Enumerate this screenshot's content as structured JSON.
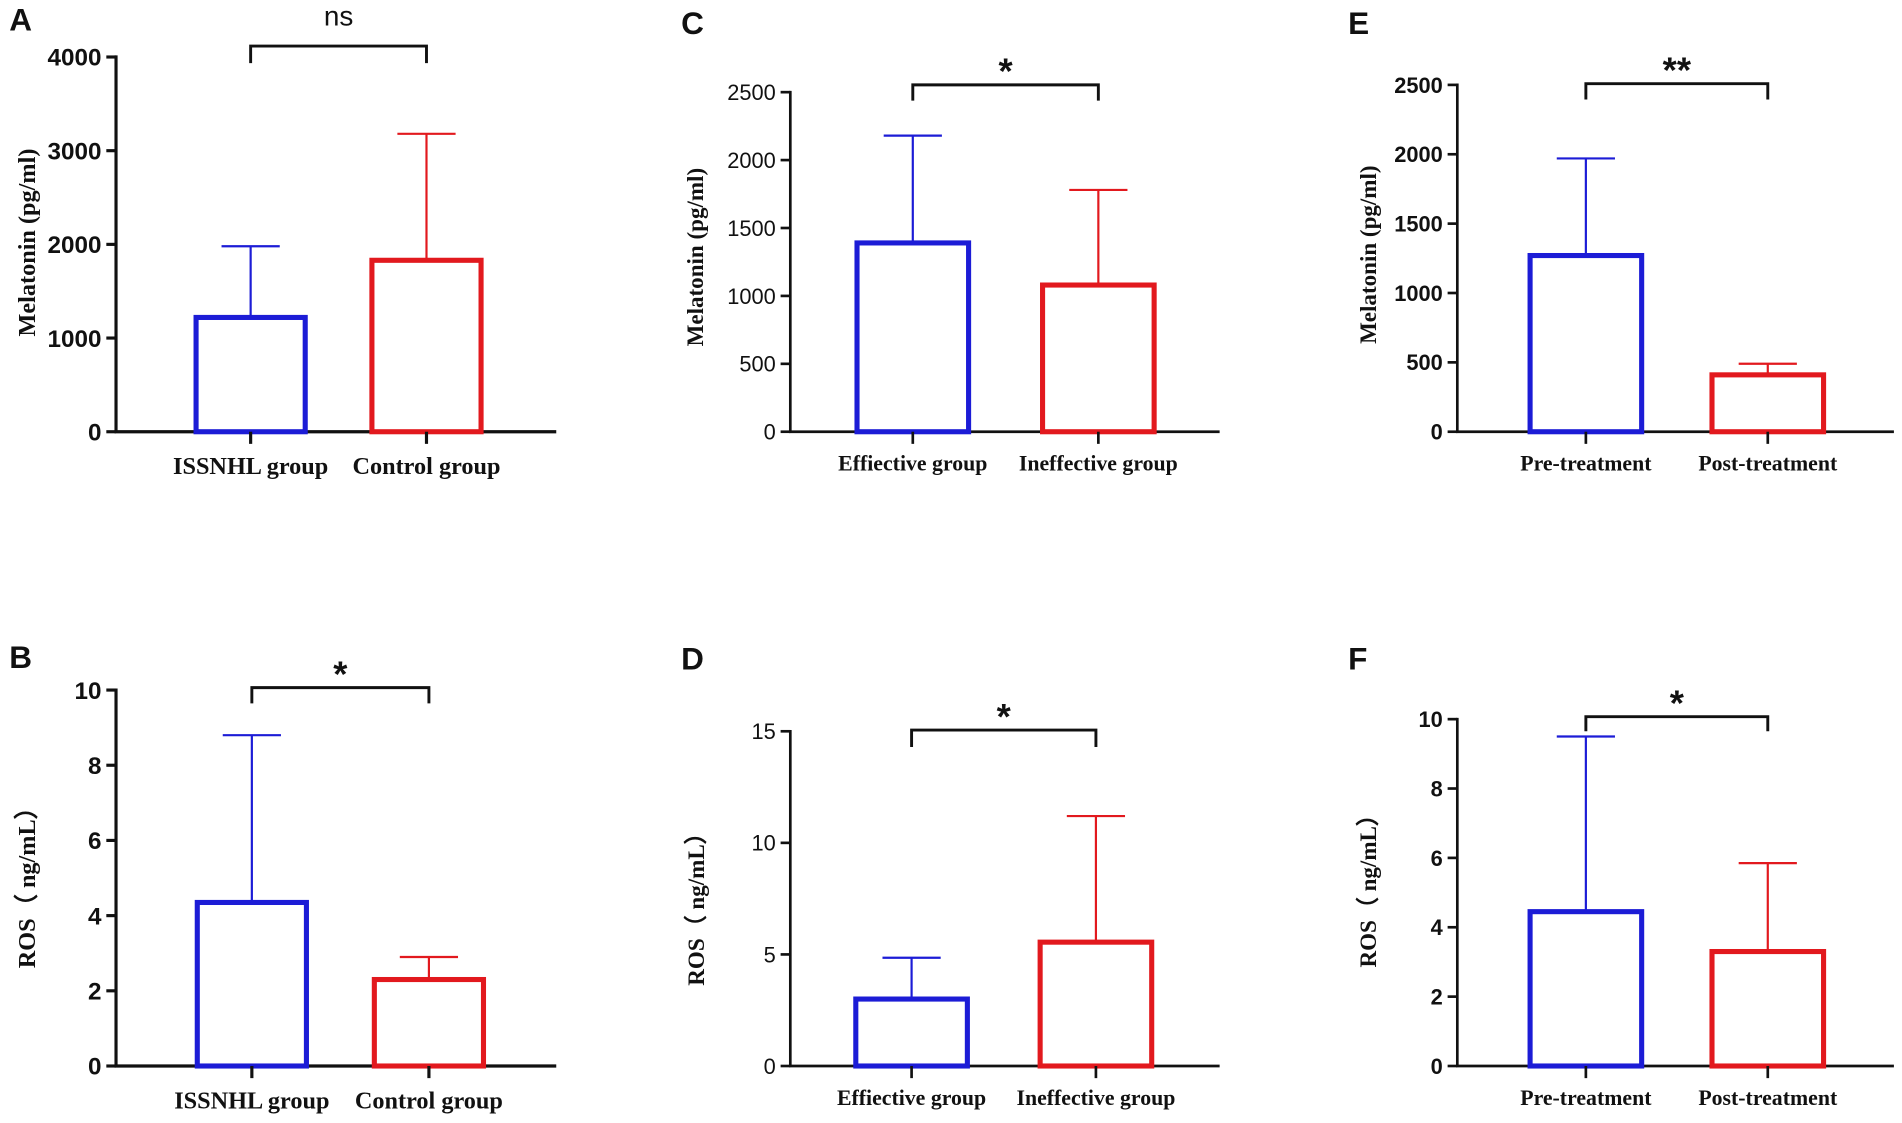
{
  "colors": {
    "bar_1": "#1c1cd6",
    "bar_2": "#e2191e",
    "axis": "#111111",
    "background": "#ffffff"
  },
  "chart_data": [
    {
      "panel_label": "A",
      "type": "bar",
      "ylabel": "Melatonin (pg/ml)",
      "categories": [
        "ISSNHL group",
        "Control group"
      ],
      "values": [
        1220,
        1830
      ],
      "error_upper": [
        1980,
        3180
      ],
      "ylim": [
        0,
        4000
      ],
      "yticks": [
        0,
        1000,
        2000,
        3000,
        4000
      ],
      "significance": "ns"
    },
    {
      "panel_label": "B",
      "type": "bar",
      "ylabel": "ROS（ ng/mL）",
      "categories": [
        "ISSNHL group",
        "Control group"
      ],
      "values": [
        4.35,
        2.3
      ],
      "error_upper": [
        8.8,
        2.9
      ],
      "ylim": [
        0,
        10
      ],
      "yticks": [
        0,
        2,
        4,
        6,
        8,
        10
      ],
      "significance": "*"
    },
    {
      "panel_label": "C",
      "type": "bar",
      "ylabel": "Melatonin (pg/ml)",
      "categories": [
        "Effiective group",
        "Ineffective group"
      ],
      "values": [
        1390,
        1080
      ],
      "error_upper": [
        2180,
        1780
      ],
      "ylim": [
        0,
        2500
      ],
      "yticks": [
        0,
        500,
        1000,
        1500,
        2000,
        2500
      ],
      "significance": "*"
    },
    {
      "panel_label": "D",
      "type": "bar",
      "ylabel": "ROS（ ng/mL）",
      "categories": [
        "Effiective group",
        "Ineffective group"
      ],
      "values": [
        3.0,
        5.55
      ],
      "error_upper": [
        4.85,
        11.2
      ],
      "ylim": [
        0,
        15
      ],
      "yticks": [
        0,
        5,
        10,
        15
      ],
      "significance": "*"
    },
    {
      "panel_label": "E",
      "type": "bar",
      "ylabel": "Melatonin (pg/ml)",
      "categories": [
        "Pre-treatment",
        "Post-treatment"
      ],
      "values": [
        1270,
        410
      ],
      "error_upper": [
        1970,
        490
      ],
      "ylim": [
        0,
        2500
      ],
      "yticks": [
        0,
        500,
        1000,
        1500,
        2000,
        2500
      ],
      "significance": "**"
    },
    {
      "panel_label": "F",
      "type": "bar",
      "ylabel": "ROS（ ng/mL）",
      "categories": [
        "Pre-treatment",
        "Post-treatment"
      ],
      "values": [
        4.45,
        3.3
      ],
      "error_upper": [
        9.5,
        5.85
      ],
      "ylim": [
        0,
        10
      ],
      "yticks": [
        0,
        2,
        4,
        6,
        8,
        10
      ],
      "significance": "*"
    }
  ]
}
